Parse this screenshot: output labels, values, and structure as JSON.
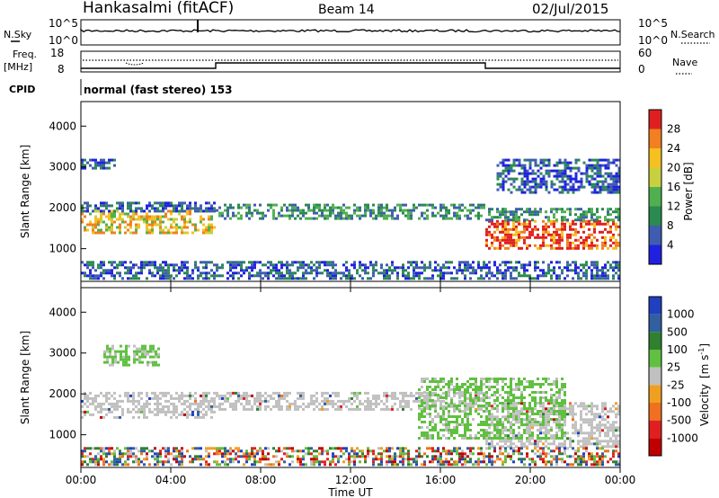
{
  "header": {
    "station": "Hankasalmi (fitACF)",
    "beam": "Beam 14",
    "date": "02/Jul/2015"
  },
  "nsky_panel": {
    "left_label": "N.Sky",
    "right_label": "N.Search",
    "left_ticks": [
      "10^5",
      "10^0"
    ],
    "right_ticks": [
      "10^5",
      "10^0"
    ]
  },
  "freq_panel": {
    "label_line1": "Freq.",
    "label_line2": "[MHz]",
    "right_label": "Nave",
    "left_ticks": [
      "18",
      "8"
    ],
    "right_ticks": [
      "60",
      "0"
    ]
  },
  "cpid": {
    "label": "CPID",
    "text": "normal (fast stereo) 153"
  },
  "time_axis": {
    "label": "Time UT",
    "ticks": [
      "00:00",
      "04:00",
      "08:00",
      "12:00",
      "16:00",
      "20:00",
      "00:00"
    ]
  },
  "power_colorbar": {
    "label": "Power [dB]",
    "ticks": [
      "28",
      "24",
      "20",
      "16",
      "12",
      "8",
      "4"
    ],
    "colors": [
      "#2020e0",
      "#3f5db0",
      "#2a8a50",
      "#50b050",
      "#c8d040",
      "#f5c020",
      "#f08020",
      "#e02020"
    ]
  },
  "velocity_colorbar": {
    "label_main": "Velocity",
    "label_units": "[m s",
    "label_units_sup": "-1",
    "label_units_close": "]",
    "ticks": [
      "1000",
      "500",
      "100",
      "25",
      "-25",
      "-100",
      "-500",
      "-1000"
    ],
    "colors": [
      "#2040c0",
      "#3060a0",
      "#308030",
      "#60c040",
      "#c0c0c0",
      "#f0a020",
      "#f07020",
      "#e02020",
      "#c00000"
    ]
  },
  "chart_data": [
    {
      "type": "heatmap",
      "panel": "power",
      "ylabel": "Slant Range [km]",
      "xlabel": "Time UT",
      "ylim": [
        200,
        4600
      ],
      "xlim": [
        0,
        24
      ],
      "yticks": [
        1000,
        2000,
        3000,
        4000
      ],
      "colorbar": "Power [dB]",
      "bands": [
        {
          "t0": 0.0,
          "t1": 6.0,
          "r0": 1400,
          "r1": 1950,
          "level": "16-24"
        },
        {
          "t0": 0.0,
          "t1": 6.0,
          "r0": 1950,
          "r1": 2150,
          "level": "4-12"
        },
        {
          "t0": 0.0,
          "t1": 1.5,
          "r0": 2950,
          "r1": 3200,
          "level": "4-12"
        },
        {
          "t0": 6.0,
          "t1": 18.0,
          "r0": 1750,
          "r1": 2100,
          "level": "8-16"
        },
        {
          "t0": 18.0,
          "t1": 24.0,
          "r0": 1000,
          "r1": 1700,
          "level": "24-32"
        },
        {
          "t0": 18.0,
          "t1": 24.0,
          "r0": 1700,
          "r1": 2000,
          "level": "8-16"
        },
        {
          "t0": 18.5,
          "t1": 24.0,
          "r0": 2400,
          "r1": 3200,
          "level": "4-12"
        },
        {
          "t0": 0.0,
          "t1": 24.0,
          "r0": 250,
          "r1": 700,
          "level": "4-12"
        }
      ]
    },
    {
      "type": "heatmap",
      "panel": "velocity",
      "ylabel": "Slant Range [km]",
      "xlabel": "Time UT",
      "ylim": [
        200,
        4600
      ],
      "xlim": [
        0,
        24
      ],
      "yticks": [
        1000,
        2000,
        3000,
        4000
      ],
      "colorbar": "Velocity [m s-1]",
      "bands": [
        {
          "t0": 0.0,
          "t1": 6.0,
          "r0": 1400,
          "r1": 2050,
          "level": "-25 to 25"
        },
        {
          "t0": 6.0,
          "t1": 18.0,
          "r0": 1650,
          "r1": 2050,
          "level": "-25 to 25"
        },
        {
          "t0": 18.0,
          "t1": 24.0,
          "r0": 700,
          "r1": 1800,
          "level": "-25 to 25"
        },
        {
          "t0": 15.0,
          "t1": 21.5,
          "r0": 900,
          "r1": 2400,
          "level": "25 to 100"
        },
        {
          "t0": 1.0,
          "t1": 3.5,
          "r0": 2700,
          "r1": 3200,
          "level": "25 to 100"
        },
        {
          "t0": 0.0,
          "t1": 24.0,
          "r0": 250,
          "r1": 700,
          "level": "mixed"
        }
      ]
    }
  ]
}
